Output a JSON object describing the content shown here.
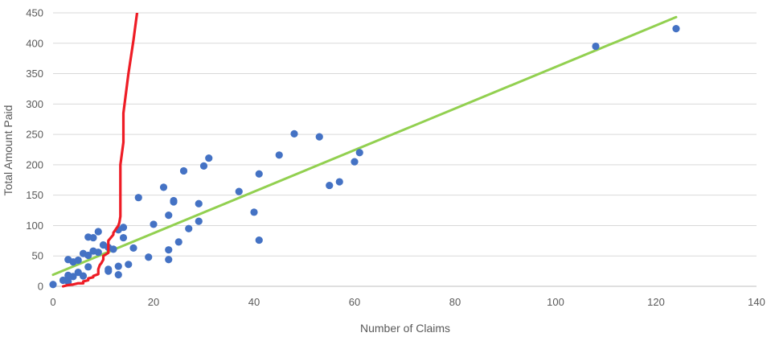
{
  "chart_data": {
    "type": "scatter",
    "title": "",
    "xlabel": "Number of Claims",
    "ylabel": "Total Amount Paid",
    "xlim": [
      0,
      140
    ],
    "ylim": [
      0,
      450
    ],
    "x_ticks": [
      0,
      20,
      40,
      60,
      80,
      100,
      120,
      140
    ],
    "y_ticks": [
      0,
      50,
      100,
      150,
      200,
      250,
      300,
      350,
      400,
      450
    ],
    "grid": "horizontal",
    "legend": "none",
    "series": [
      {
        "type": "scatter",
        "color": "#4472c4",
        "points": [
          [
            0,
            3
          ],
          [
            2,
            10
          ],
          [
            3,
            8
          ],
          [
            3,
            18
          ],
          [
            3,
            44
          ],
          [
            4,
            16
          ],
          [
            4,
            40
          ],
          [
            5,
            23
          ],
          [
            5,
            43
          ],
          [
            6,
            17
          ],
          [
            6,
            54
          ],
          [
            7,
            32
          ],
          [
            7,
            51
          ],
          [
            7,
            81
          ],
          [
            8,
            58
          ],
          [
            8,
            80
          ],
          [
            9,
            56
          ],
          [
            9,
            90
          ],
          [
            10,
            68
          ],
          [
            11,
            25
          ],
          [
            11,
            28
          ],
          [
            11,
            64
          ],
          [
            12,
            61
          ],
          [
            13,
            19
          ],
          [
            13,
            33
          ],
          [
            13,
            93
          ],
          [
            14,
            80
          ],
          [
            14,
            97
          ],
          [
            15,
            36
          ],
          [
            16,
            63
          ],
          [
            17,
            146
          ],
          [
            19,
            48
          ],
          [
            20,
            102
          ],
          [
            22,
            163
          ],
          [
            23,
            44
          ],
          [
            23,
            60
          ],
          [
            23,
            117
          ],
          [
            24,
            139
          ],
          [
            24,
            141
          ],
          [
            25,
            73
          ],
          [
            26,
            190
          ],
          [
            27,
            95
          ],
          [
            29,
            107
          ],
          [
            29,
            136
          ],
          [
            30,
            198
          ],
          [
            31,
            211
          ],
          [
            37,
            156
          ],
          [
            40,
            122
          ],
          [
            41,
            76
          ],
          [
            41,
            185
          ],
          [
            45,
            216
          ],
          [
            48,
            251
          ],
          [
            53,
            246
          ],
          [
            55,
            166
          ],
          [
            57,
            172
          ],
          [
            60,
            205
          ],
          [
            61,
            220
          ],
          [
            108,
            395
          ],
          [
            124,
            424
          ]
        ]
      },
      {
        "type": "line",
        "color": "#92d050",
        "points": [
          [
            0,
            19
          ],
          [
            124,
            443
          ]
        ]
      },
      {
        "type": "line",
        "color": "#ee1c25",
        "points": [
          [
            2,
            0
          ],
          [
            3,
            2
          ],
          [
            4,
            3
          ],
          [
            5,
            5
          ],
          [
            6,
            5
          ],
          [
            6,
            8
          ],
          [
            7,
            10
          ],
          [
            7,
            13
          ],
          [
            8,
            15
          ],
          [
            8,
            17
          ],
          [
            9,
            20
          ],
          [
            9,
            28
          ],
          [
            9.3,
            35
          ],
          [
            9.6,
            38
          ],
          [
            10,
            44
          ],
          [
            10,
            50
          ],
          [
            11,
            55
          ],
          [
            11,
            64
          ],
          [
            11,
            75
          ],
          [
            12,
            85
          ],
          [
            12,
            88
          ],
          [
            13,
            100
          ],
          [
            13.2,
            105
          ],
          [
            13.4,
            115
          ],
          [
            13.4,
            200
          ],
          [
            14,
            237
          ],
          [
            14,
            285
          ],
          [
            15,
            350
          ],
          [
            16,
            405
          ],
          [
            16.8,
            455
          ]
        ]
      }
    ]
  }
}
